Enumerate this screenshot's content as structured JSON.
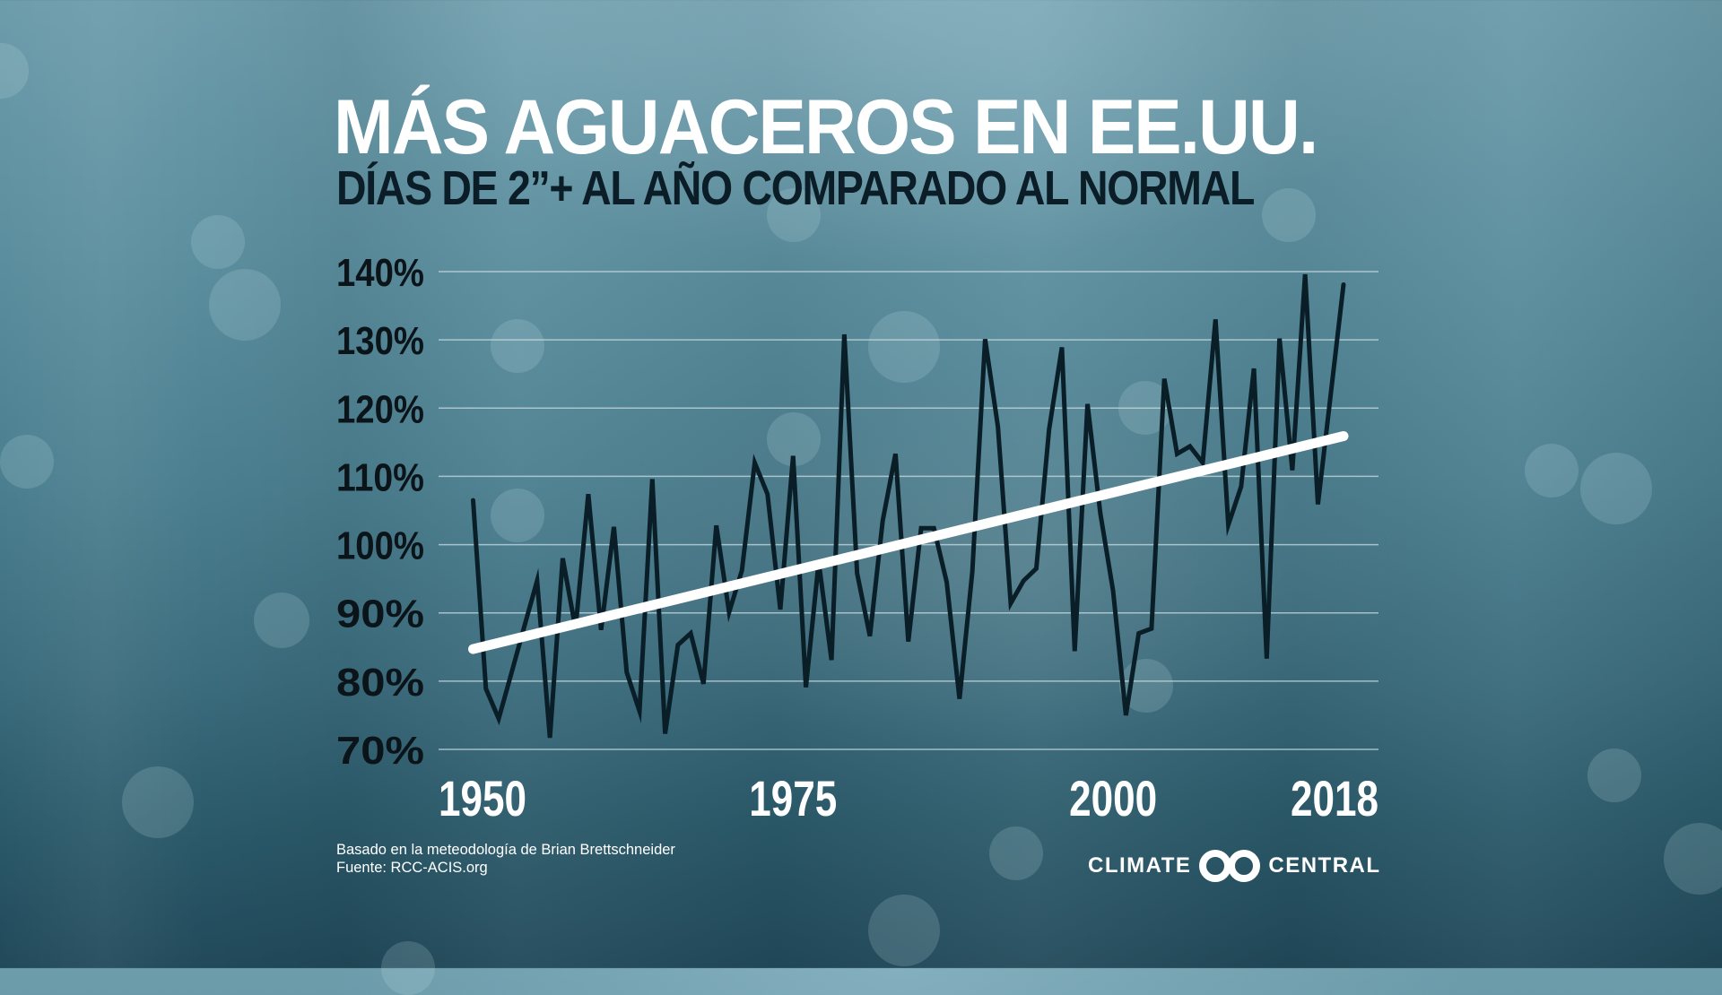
{
  "header": {
    "title": "MÁS AGUACEROS EN EE.UU.",
    "subtitle": "DÍAS DE 2”+ AL AÑO COMPARADO AL NORMAL"
  },
  "footer": {
    "line1": "Basado en la meteodología de Brian Brettschneider",
    "line2": "Fuente: RCC-ACIS.org"
  },
  "logo": {
    "left_text": "CLIMATE",
    "right_text": "CENTRAL",
    "icon": "climate-central-rings-icon"
  },
  "colors": {
    "title": "#ffffff",
    "subtitle": "#0b1d27",
    "series_line": "#0a1e28",
    "trend_line": "#ffffff",
    "gridline": "#c9dbe0",
    "background_top": "#6d9cab",
    "background_bottom": "#21495a"
  },
  "chart_data": {
    "type": "line",
    "title": "MÁS AGUACEROS EN EE.UU.",
    "subtitle": "DÍAS DE 2”+ AL AÑO COMPARADO AL NORMAL",
    "xlabel": "",
    "ylabel": "",
    "x_range": [
      1950,
      2018
    ],
    "ylim": [
      70,
      140
    ],
    "y_ticks": [
      70,
      80,
      90,
      100,
      110,
      120,
      130,
      140
    ],
    "y_tick_labels": [
      "70%",
      "80%",
      "90%",
      "100%",
      "110%",
      "120%",
      "130%",
      "140%"
    ],
    "x_ticks": [
      1950,
      1975,
      2000,
      2018
    ],
    "x_tick_labels": [
      "1950",
      "1975",
      "2000",
      "2018"
    ],
    "grid": true,
    "legend": "none",
    "x": [
      1950,
      1951,
      1952,
      1953,
      1954,
      1955,
      1956,
      1957,
      1958,
      1959,
      1960,
      1961,
      1962,
      1963,
      1964,
      1965,
      1966,
      1967,
      1968,
      1969,
      1970,
      1971,
      1972,
      1973,
      1974,
      1975,
      1976,
      1977,
      1978,
      1979,
      1980,
      1981,
      1982,
      1983,
      1984,
      1985,
      1986,
      1987,
      1988,
      1989,
      1990,
      1991,
      1992,
      1993,
      1994,
      1995,
      1996,
      1997,
      1998,
      1999,
      2000,
      2001,
      2002,
      2003,
      2004,
      2005,
      2006,
      2007,
      2008,
      2009,
      2010,
      2011,
      2012,
      2013,
      2014,
      2015,
      2016,
      2017,
      2018
    ],
    "series": [
      {
        "name": "Days with 2”+ rain vs normal (%)",
        "values": [
          106.5,
          78.9,
          74.5,
          81.2,
          88.0,
          94.7,
          71.7,
          98.0,
          87.7,
          107.4,
          87.5,
          102.6,
          81.3,
          75.6,
          109.6,
          72.3,
          85.3,
          87.0,
          79.6,
          102.8,
          90.1,
          96.2,
          112.0,
          107.4,
          90.5,
          113.0,
          79.1,
          97.5,
          83.1,
          130.8,
          95.8,
          86.6,
          103.5,
          113.3,
          85.8,
          102.4,
          102.4,
          94.5,
          77.4,
          96.0,
          130.1,
          117.3,
          91.4,
          94.7,
          96.5,
          116.9,
          128.9,
          84.4,
          120.6,
          104.6,
          93.2,
          75.0,
          87.0,
          87.7,
          124.3,
          113.3,
          114.4,
          112.0,
          133.0,
          102.9,
          108.5,
          125.8,
          83.3,
          130.2,
          110.9,
          139.6,
          105.9,
          122.0,
          138.1
        ]
      },
      {
        "name": "Trend",
        "type": "linear-trend",
        "x": [
          1950,
          2018
        ],
        "values": [
          84.7,
          115.9
        ]
      }
    ]
  }
}
